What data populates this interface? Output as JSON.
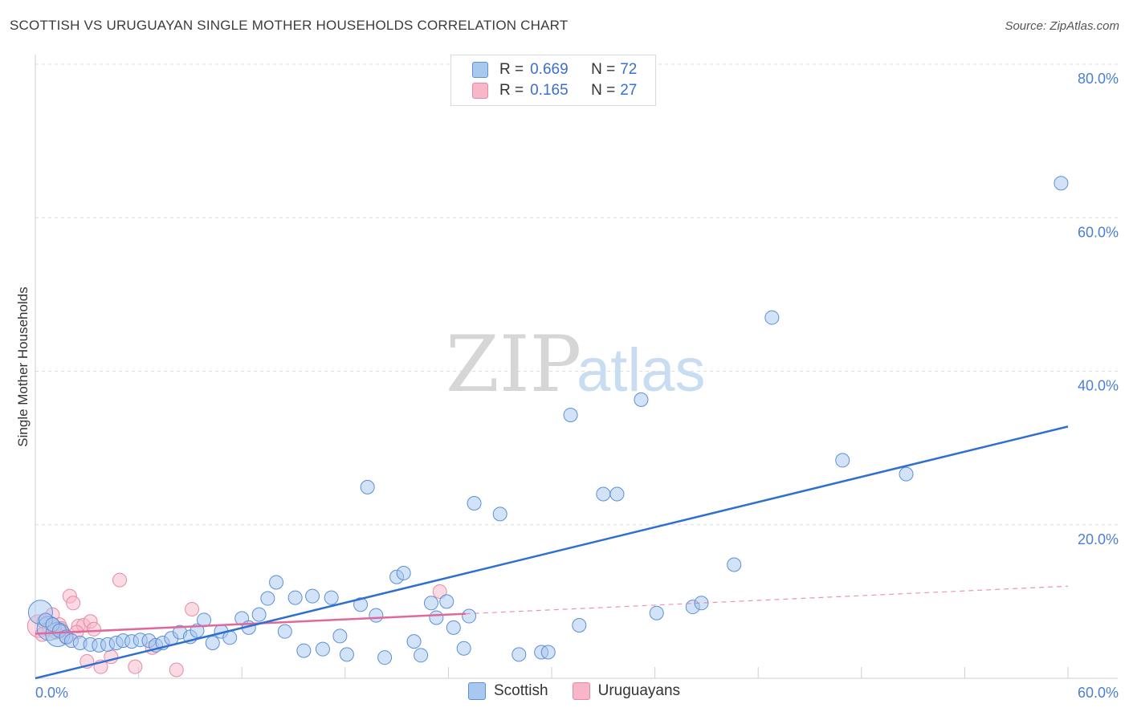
{
  "title": "SCOTTISH VS URUGUAYAN SINGLE MOTHER HOUSEHOLDS CORRELATION CHART",
  "source": "Source: ZipAtlas.com",
  "watermark": {
    "zip": "ZIP",
    "atlas": "atlas"
  },
  "legend": {
    "rows": [
      {
        "r_label": "R = ",
        "r_value": "0.669",
        "n_label": "N = ",
        "n_value": "72"
      },
      {
        "r_label": "R = ",
        "r_value": "0.165",
        "n_label": "N = ",
        "n_value": "27"
      }
    ]
  },
  "bottom_legend": [
    "Scottish",
    "Uruguayans"
  ],
  "colors": {
    "scottish_fill": "#a8c8f0",
    "scottish_stroke": "#5b8fd6",
    "scottish_line": "#2f6fd0",
    "uruguayan_fill": "#f7b7c8",
    "uruguayan_stroke": "#e48aa4",
    "uruguayan_line": "#e0689a",
    "tick_color": "#4a7fd4"
  },
  "chart_data": {
    "type": "scatter",
    "title": "SCOTTISH VS URUGUAYAN SINGLE MOTHER HOUSEHOLDS CORRELATION CHART",
    "xlabel": "",
    "ylabel": "Single Mother Households",
    "xlim": [
      0,
      60
    ],
    "ylim": [
      0,
      80
    ],
    "x_tick_labels": [
      "0.0%",
      "60.0%"
    ],
    "y_ticks": [
      20,
      40,
      60,
      80
    ],
    "y_tick_labels": [
      "20.0%",
      "40.0%",
      "60.0%",
      "80.0%"
    ],
    "grid": true,
    "series": [
      {
        "name": "Scottish",
        "r": 0.669,
        "n": 72,
        "trend": {
          "x": [
            0,
            60
          ],
          "y": [
            0,
            32.8
          ]
        },
        "points": [
          {
            "x": 0.3,
            "y": 8.6,
            "big": true
          },
          {
            "x": 0.8,
            "y": 6.5,
            "big": true
          },
          {
            "x": 1.3,
            "y": 5.7,
            "big": true
          },
          {
            "x": 0.6,
            "y": 7.6
          },
          {
            "x": 1.0,
            "y": 7.0
          },
          {
            "x": 1.4,
            "y": 6.2
          },
          {
            "x": 1.8,
            "y": 5.4
          },
          {
            "x": 2.1,
            "y": 4.9
          },
          {
            "x": 2.6,
            "y": 4.6
          },
          {
            "x": 3.2,
            "y": 4.4
          },
          {
            "x": 3.7,
            "y": 4.3
          },
          {
            "x": 4.2,
            "y": 4.4
          },
          {
            "x": 4.7,
            "y": 4.6
          },
          {
            "x": 5.1,
            "y": 4.9
          },
          {
            "x": 5.6,
            "y": 4.8
          },
          {
            "x": 6.1,
            "y": 5.0
          },
          {
            "x": 6.6,
            "y": 4.9
          },
          {
            "x": 7.0,
            "y": 4.3
          },
          {
            "x": 7.4,
            "y": 4.6
          },
          {
            "x": 7.9,
            "y": 5.2
          },
          {
            "x": 8.4,
            "y": 6.0
          },
          {
            "x": 9.0,
            "y": 5.4
          },
          {
            "x": 9.4,
            "y": 6.2
          },
          {
            "x": 9.8,
            "y": 7.6
          },
          {
            "x": 10.3,
            "y": 4.6
          },
          {
            "x": 10.8,
            "y": 6.1
          },
          {
            "x": 11.3,
            "y": 5.3
          },
          {
            "x": 12.0,
            "y": 7.8
          },
          {
            "x": 12.4,
            "y": 6.6
          },
          {
            "x": 13.0,
            "y": 8.3
          },
          {
            "x": 13.5,
            "y": 10.4
          },
          {
            "x": 14.0,
            "y": 12.5
          },
          {
            "x": 14.5,
            "y": 6.1
          },
          {
            "x": 15.1,
            "y": 10.5
          },
          {
            "x": 15.6,
            "y": 3.6
          },
          {
            "x": 16.1,
            "y": 10.7
          },
          {
            "x": 16.7,
            "y": 3.8
          },
          {
            "x": 17.2,
            "y": 10.5
          },
          {
            "x": 17.7,
            "y": 5.5
          },
          {
            "x": 18.1,
            "y": 3.1
          },
          {
            "x": 18.9,
            "y": 9.6
          },
          {
            "x": 19.3,
            "y": 24.9
          },
          {
            "x": 19.8,
            "y": 8.2
          },
          {
            "x": 20.3,
            "y": 2.7
          },
          {
            "x": 21.0,
            "y": 13.2
          },
          {
            "x": 21.4,
            "y": 13.7
          },
          {
            "x": 22.0,
            "y": 4.8
          },
          {
            "x": 22.4,
            "y": 3.0
          },
          {
            "x": 23.0,
            "y": 9.8
          },
          {
            "x": 23.3,
            "y": 7.9
          },
          {
            "x": 23.9,
            "y": 10.0
          },
          {
            "x": 24.3,
            "y": 6.6
          },
          {
            "x": 24.9,
            "y": 3.9
          },
          {
            "x": 25.5,
            "y": 22.8
          },
          {
            "x": 27.0,
            "y": 21.4
          },
          {
            "x": 28.1,
            "y": 3.1
          },
          {
            "x": 29.4,
            "y": 3.4
          },
          {
            "x": 29.8,
            "y": 3.4
          },
          {
            "x": 31.1,
            "y": 34.3
          },
          {
            "x": 31.6,
            "y": 6.9
          },
          {
            "x": 33.0,
            "y": 24.0
          },
          {
            "x": 33.8,
            "y": 24.0
          },
          {
            "x": 35.2,
            "y": 36.3
          },
          {
            "x": 36.1,
            "y": 8.5
          },
          {
            "x": 38.2,
            "y": 9.3
          },
          {
            "x": 38.7,
            "y": 9.8
          },
          {
            "x": 40.6,
            "y": 14.8
          },
          {
            "x": 42.8,
            "y": 47.0
          },
          {
            "x": 46.9,
            "y": 28.4
          },
          {
            "x": 50.6,
            "y": 26.6
          },
          {
            "x": 59.6,
            "y": 64.5
          },
          {
            "x": 25.2,
            "y": 8.1
          }
        ]
      },
      {
        "name": "Uruguayans",
        "r": 0.165,
        "n": 27,
        "trend": {
          "x": [
            0,
            25
          ],
          "y": [
            5.8,
            8.4
          ]
        },
        "trend_dashed": {
          "x": [
            25,
            60
          ],
          "y": [
            8.4,
            12.0
          ]
        },
        "points": [
          {
            "x": 0.2,
            "y": 6.8,
            "big": true
          },
          {
            "x": 0.5,
            "y": 7.4
          },
          {
            "x": 0.8,
            "y": 6.4
          },
          {
            "x": 1.0,
            "y": 8.3
          },
          {
            "x": 1.2,
            "y": 6.0
          },
          {
            "x": 1.4,
            "y": 7.0
          },
          {
            "x": 1.6,
            "y": 6.0
          },
          {
            "x": 1.8,
            "y": 5.3
          },
          {
            "x": 2.0,
            "y": 10.7
          },
          {
            "x": 2.2,
            "y": 9.8
          },
          {
            "x": 2.5,
            "y": 6.8
          },
          {
            "x": 2.8,
            "y": 6.9
          },
          {
            "x": 3.2,
            "y": 7.4
          },
          {
            "x": 3.4,
            "y": 6.4
          },
          {
            "x": 3.0,
            "y": 2.2
          },
          {
            "x": 3.8,
            "y": 1.5
          },
          {
            "x": 4.4,
            "y": 2.8
          },
          {
            "x": 4.9,
            "y": 12.8
          },
          {
            "x": 5.8,
            "y": 1.5
          },
          {
            "x": 6.8,
            "y": 4.0
          },
          {
            "x": 8.2,
            "y": 1.1
          },
          {
            "x": 9.1,
            "y": 9.0
          },
          {
            "x": 23.5,
            "y": 11.3
          },
          {
            "x": 0.4,
            "y": 5.7
          },
          {
            "x": 1.1,
            "y": 6.6
          },
          {
            "x": 2.4,
            "y": 6.0
          },
          {
            "x": 1.5,
            "y": 6.5
          }
        ]
      }
    ]
  }
}
